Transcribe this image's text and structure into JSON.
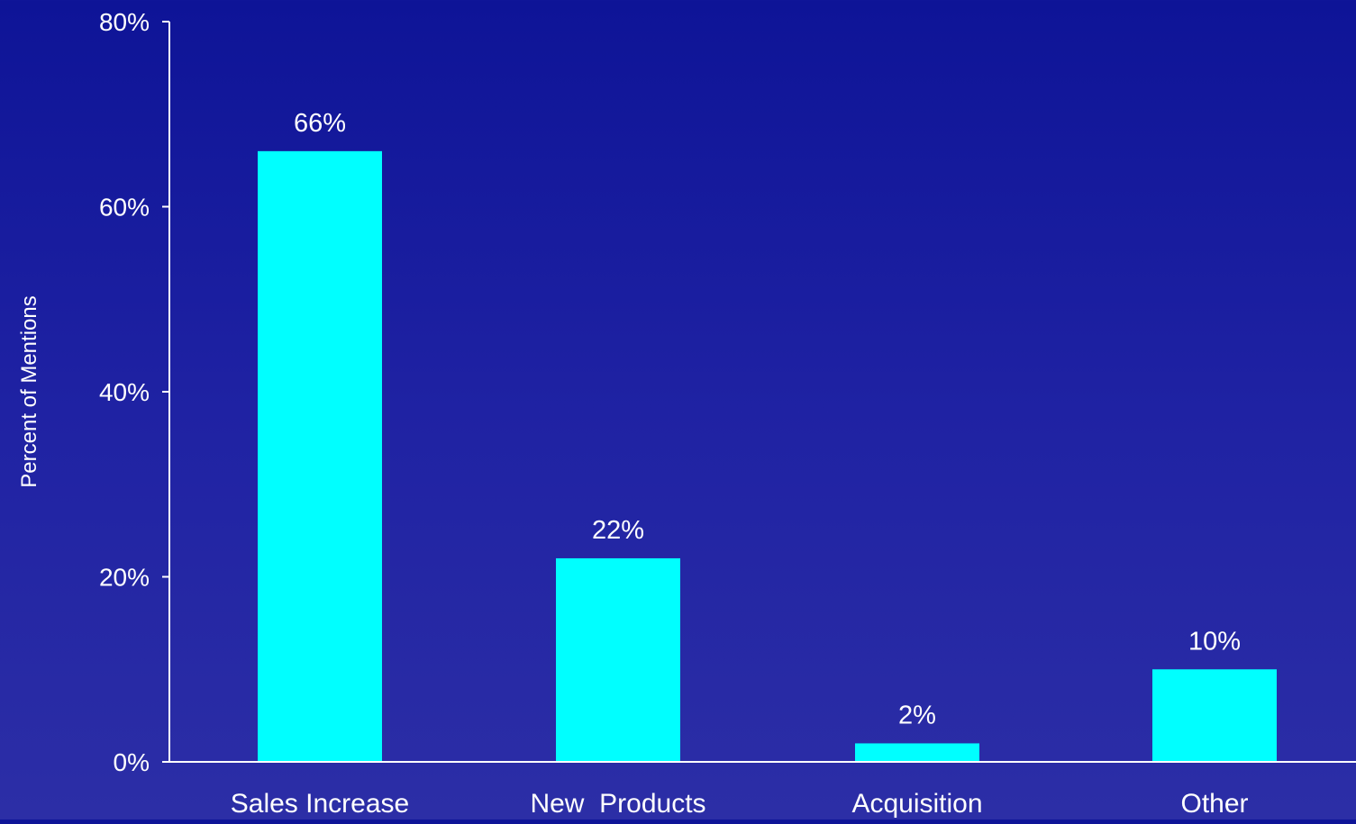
{
  "chart_data": {
    "type": "bar",
    "title": "",
    "xlabel": "",
    "ylabel": "Percent of Mentions",
    "categories": [
      "Sales Increase",
      "New  Products",
      "Acquisition",
      "Other"
    ],
    "values": [
      66,
      22,
      2,
      10
    ],
    "data_labels": [
      "66%",
      "22%",
      "2%",
      "10%"
    ],
    "ylim": [
      0,
      80
    ],
    "yticks": [
      0,
      20,
      40,
      60,
      80
    ],
    "ytick_labels": [
      "0%",
      "20%",
      "40%",
      "60%",
      "80%"
    ],
    "grid": false,
    "legend": "none",
    "colors": {
      "bar": "#00ffff",
      "axis": "#ffffff",
      "text": "#ffffff",
      "background_top": "#0e1497",
      "background_bottom": "#2c2ea6"
    }
  }
}
